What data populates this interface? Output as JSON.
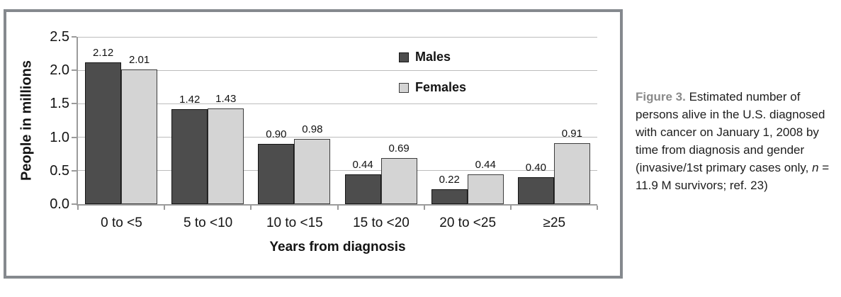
{
  "chart_data": {
    "type": "bar",
    "title": "",
    "categories": [
      "0 to <5",
      "5 to <10",
      "10 to <15",
      "15 to <20",
      "20 to <25",
      "≥25"
    ],
    "series": [
      {
        "name": "Males",
        "color": "#4d4d4d",
        "border_color": "#141414",
        "values": [
          2.12,
          1.42,
          0.9,
          0.44,
          0.22,
          0.4
        ]
      },
      {
        "name": "Females",
        "color": "#d4d4d4",
        "border_color": "#3c3c3c",
        "values": [
          2.01,
          1.43,
          0.98,
          0.69,
          0.44,
          0.91
        ]
      }
    ],
    "xlabel": "Years from diagnosis",
    "ylabel": "People in millions",
    "ylim": [
      0,
      2.5
    ],
    "ytick_step": 0.5,
    "ytick_labels": [
      "0.0",
      "0.5",
      "1.0",
      "1.5",
      "2.0",
      "2.5"
    ],
    "grid": true,
    "value_labels_shown": true,
    "legend_position": "upper-center-right",
    "colors": {
      "gridline": "#bcbcbc",
      "axis": "#9b9b9b",
      "frame_border": "#85898e",
      "text": "#141414"
    }
  },
  "caption": {
    "label": "Figure 3.",
    "body_before_n": " Estimated number of persons alive in the U.S. diagnosed with cancer on January 1, 2008 by time from diagnosis and gender (invasive/1st primary cases only, ",
    "n_symbol": "n",
    "body_after_n": " = 11.9 M survivors; ref. 23)"
  }
}
